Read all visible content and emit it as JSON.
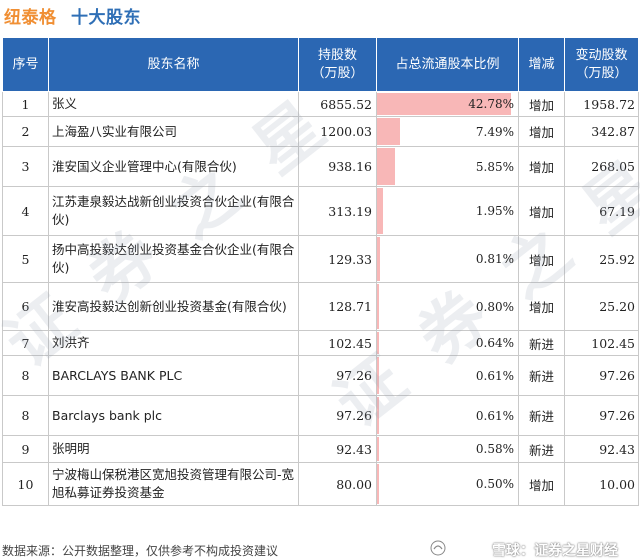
{
  "header": {
    "company": "纽泰格",
    "title": "十大股东"
  },
  "table": {
    "columns": [
      "序号",
      "股东名称",
      "持股数\n（万股）",
      "占总流通股本比例",
      "增减",
      "变动股数\n（万股）"
    ],
    "rows": [
      {
        "idx": "1",
        "name": "张义",
        "shares": "6855.52",
        "ratio": "42.78%",
        "ratio_value": 42.78,
        "change": "增加",
        "delta": "1958.72"
      },
      {
        "idx": "2",
        "name": "上海盈八实业有限公司",
        "shares": "1200.03",
        "ratio": "7.49%",
        "ratio_value": 7.49,
        "change": "增加",
        "delta": "342.87"
      },
      {
        "idx": "3",
        "name": "淮安国义企业管理中心(有限合伙)",
        "shares": "938.16",
        "ratio": "5.85%",
        "ratio_value": 5.85,
        "change": "增加",
        "delta": "268.05"
      },
      {
        "idx": "4",
        "name": "江苏疌泉毅达战新创业投资合伙企业(有限合伙)",
        "shares": "313.19",
        "ratio": "1.95%",
        "ratio_value": 1.95,
        "change": "增加",
        "delta": "67.19"
      },
      {
        "idx": "5",
        "name": "扬中高投毅达创业投资基金合伙企业(有限合伙)",
        "shares": "129.33",
        "ratio": "0.81%",
        "ratio_value": 0.81,
        "change": "增加",
        "delta": "25.92"
      },
      {
        "idx": "6",
        "name": "淮安高投毅达创新创业投资基金(有限合伙)",
        "shares": "128.71",
        "ratio": "0.80%",
        "ratio_value": 0.8,
        "change": "增加",
        "delta": "25.20"
      },
      {
        "idx": "7",
        "name": "刘洪齐",
        "shares": "102.45",
        "ratio": "0.64%",
        "ratio_value": 0.64,
        "change": "新进",
        "delta": "102.45"
      },
      {
        "idx": "8",
        "name": "BARCLAYS BANK PLC",
        "shares": "97.26",
        "ratio": "0.61%",
        "ratio_value": 0.61,
        "change": "新进",
        "delta": "97.26"
      },
      {
        "idx": "8",
        "name": "Barclays bank plc",
        "shares": "97.26",
        "ratio": "0.61%",
        "ratio_value": 0.61,
        "change": "新进",
        "delta": "97.26"
      },
      {
        "idx": "9",
        "name": "张明明",
        "shares": "92.43",
        "ratio": "0.58%",
        "ratio_value": 0.58,
        "change": "新进",
        "delta": "92.43"
      },
      {
        "idx": "10",
        "name": "宁波梅山保税港区宽旭投资管理有限公司-宽旭私募证券投资基金",
        "shares": "80.00",
        "ratio": "0.50%",
        "ratio_value": 0.5,
        "change": "增加",
        "delta": "10.00"
      }
    ]
  },
  "footer": {
    "source": "数据来源：公开数据整理，仅供参考不构成投资建议",
    "brand": "雪球：证券之星财经"
  },
  "colors": {
    "header_bg": "#2b67b3",
    "company_title": "#f08f34",
    "section_title": "#2f6fb6",
    "bar_fill": "#f8b7b7",
    "change_text": "#d42020"
  },
  "icons": {
    "brand": "snowball-icon"
  }
}
